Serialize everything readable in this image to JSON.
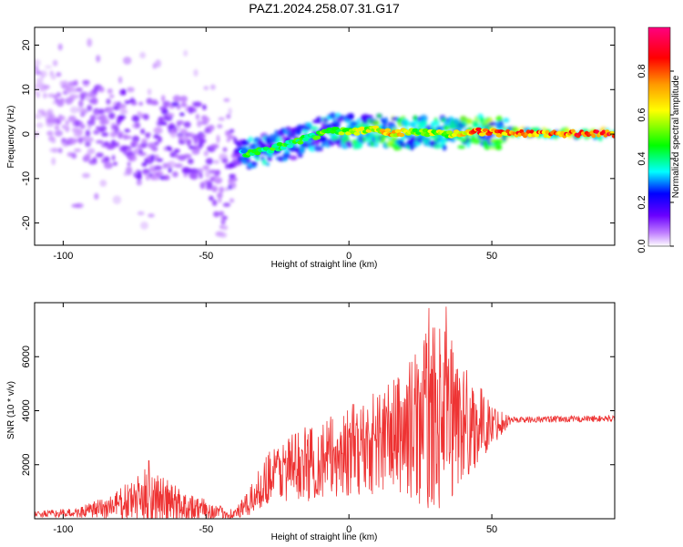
{
  "title": "PAZ1.2024.258.07.31.G17",
  "chart_data": [
    {
      "type": "heatmap",
      "xlabel": "Height of straight line (km)",
      "ylabel": "Frequency (Hz)",
      "xlim": [
        -110,
        93
      ],
      "ylim": [
        -25,
        24
      ],
      "xticks": [
        -100,
        -50,
        0,
        50
      ],
      "yticks": [
        -20,
        -10,
        0,
        10,
        20
      ],
      "colorbar": {
        "label": "Normalized spectral amplitude",
        "range": [
          0,
          1
        ],
        "ticks": [
          0.0,
          0.2,
          0.4,
          0.6,
          0.8
        ],
        "tick_labels": [
          "0.0",
          "0.2",
          "0.4",
          "0.6",
          "0.8"
        ],
        "colormap": [
          "#ffffff",
          "#d9b3ff",
          "#9a3cff",
          "#6a00ff",
          "#0000ff",
          "#00ffff",
          "#00ff00",
          "#ffff00",
          "#ff9900",
          "#ff0000",
          "#ff0080"
        ]
      },
      "ridge": [
        {
          "x": -110,
          "freq": 8.0,
          "amp": 0.05
        },
        {
          "x": -100,
          "freq": 4.0,
          "amp": 0.12
        },
        {
          "x": -90,
          "freq": 2.5,
          "amp": 0.15
        },
        {
          "x": -80,
          "freq": 1.0,
          "amp": 0.18
        },
        {
          "x": -70,
          "freq": -1.5,
          "amp": 0.2
        },
        {
          "x": -60,
          "freq": -0.5,
          "amp": 0.22
        },
        {
          "x": -50,
          "freq": -3.0,
          "amp": 0.18
        },
        {
          "x": -45,
          "freq": -14.0,
          "amp": 0.12
        },
        {
          "x": -40,
          "freq": -4.0,
          "amp": 0.25
        },
        {
          "x": -35,
          "freq": -4.5,
          "amp": 0.5
        },
        {
          "x": -25,
          "freq": -3.0,
          "amp": 0.5
        },
        {
          "x": -15,
          "freq": -1.0,
          "amp": 0.5
        },
        {
          "x": -5,
          "freq": 1.0,
          "amp": 0.55
        },
        {
          "x": 0,
          "freq": 0.5,
          "amp": 0.6
        },
        {
          "x": 10,
          "freq": 1.0,
          "amp": 0.7
        },
        {
          "x": 15,
          "freq": 0.2,
          "amp": 0.8
        },
        {
          "x": 25,
          "freq": 0.5,
          "amp": 0.6
        },
        {
          "x": 35,
          "freq": 0.0,
          "amp": 0.65
        },
        {
          "x": 45,
          "freq": 0.5,
          "amp": 0.85
        },
        {
          "x": 55,
          "freq": 0.2,
          "amp": 0.85
        },
        {
          "x": 93,
          "freq": 0.0,
          "amp": 0.9
        }
      ]
    },
    {
      "type": "line",
      "xlabel": "Height of straight line (km)",
      "ylabel": "SNR (10 * v/v)",
      "xlim": [
        -110,
        93
      ],
      "ylim": [
        0,
        8000
      ],
      "xticks": [
        -100,
        -50,
        0,
        50
      ],
      "yticks": [
        2000,
        4000,
        6000
      ],
      "color": "#ee3333",
      "envelope": [
        {
          "x": -110,
          "base": 150,
          "amp": 120
        },
        {
          "x": -95,
          "base": 200,
          "amp": 180
        },
        {
          "x": -85,
          "base": 350,
          "amp": 450
        },
        {
          "x": -75,
          "base": 600,
          "amp": 800
        },
        {
          "x": -70,
          "base": 700,
          "amp": 1200
        },
        {
          "x": -65,
          "base": 550,
          "amp": 900
        },
        {
          "x": -55,
          "base": 350,
          "amp": 550
        },
        {
          "x": -45,
          "base": 200,
          "amp": 250
        },
        {
          "x": -40,
          "base": 150,
          "amp": 200
        },
        {
          "x": -35,
          "base": 500,
          "amp": 500
        },
        {
          "x": -28,
          "base": 1500,
          "amp": 1000
        },
        {
          "x": -20,
          "base": 1800,
          "amp": 1300
        },
        {
          "x": -10,
          "base": 2000,
          "amp": 1500
        },
        {
          "x": 0,
          "base": 2300,
          "amp": 1700
        },
        {
          "x": 10,
          "base": 2700,
          "amp": 2000
        },
        {
          "x": 20,
          "base": 3000,
          "amp": 2400
        },
        {
          "x": 28,
          "base": 3400,
          "amp": 3500
        },
        {
          "x": 35,
          "base": 3400,
          "amp": 3200
        },
        {
          "x": 42,
          "base": 3300,
          "amp": 2000
        },
        {
          "x": 50,
          "base": 3400,
          "amp": 800
        },
        {
          "x": 57,
          "base": 3650,
          "amp": 120
        },
        {
          "x": 93,
          "base": 3700,
          "amp": 120
        }
      ],
      "peaks": [
        {
          "x": -70,
          "y": 2150
        },
        {
          "x": 28,
          "y": 7800
        },
        {
          "x": 34,
          "y": 7850
        },
        {
          "x": 36,
          "y": 6600
        }
      ]
    }
  ]
}
